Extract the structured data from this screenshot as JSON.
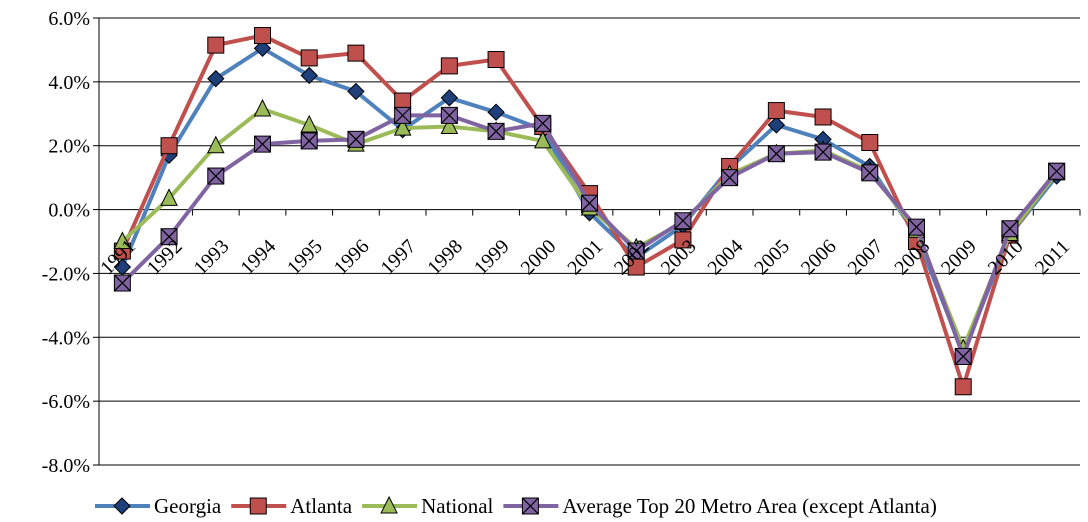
{
  "chart_data": {
    "type": "line",
    "title": "",
    "xlabel": "",
    "ylabel": "",
    "ylim": [
      -8.0,
      6.0
    ],
    "y_tick_step": 2.0,
    "y_tick_labels": [
      "6.0%",
      "4.0%",
      "2.0%",
      "0.0%",
      "-2.0%",
      "-4.0%",
      "-6.0%",
      "-8.0%"
    ],
    "categories": [
      "1991",
      "1992",
      "1993",
      "1994",
      "1995",
      "1996",
      "1997",
      "1998",
      "1999",
      "2000",
      "2001",
      "2002",
      "2003",
      "2004",
      "2005",
      "2006",
      "2007",
      "2008",
      "2009",
      "2010",
      "2011"
    ],
    "grid": "horizontal",
    "legend_position": "bottom",
    "series": [
      {
        "name": "Georgia",
        "color": "#4f81bd",
        "marker": "diamond",
        "values": [
          -1.8,
          1.7,
          4.1,
          5.05,
          4.2,
          3.7,
          2.5,
          3.5,
          3.05,
          2.5,
          -0.1,
          -1.5,
          -0.5,
          1.3,
          2.65,
          2.2,
          1.35,
          -0.8,
          -4.5,
          -0.8,
          1.05
        ]
      },
      {
        "name": "Atlanta",
        "color": "#c0504d",
        "marker": "square",
        "values": [
          -1.3,
          2.0,
          5.15,
          5.45,
          4.75,
          4.9,
          3.4,
          4.5,
          4.7,
          2.6,
          0.5,
          -1.8,
          -0.95,
          1.35,
          3.1,
          2.9,
          2.1,
          -1.0,
          -5.55,
          -0.8,
          1.2
        ]
      },
      {
        "name": "National",
        "color": "#9bbb59",
        "marker": "triangle",
        "values": [
          -1.0,
          0.35,
          2.0,
          3.15,
          2.65,
          2.05,
          2.55,
          2.6,
          2.45,
          2.15,
          0.05,
          -1.2,
          -0.4,
          1.1,
          1.75,
          1.85,
          1.2,
          -0.65,
          -4.35,
          -0.75,
          1.15
        ]
      },
      {
        "name": "Average Top 20 Metro Area (except Atlanta)",
        "color": "#8064a2",
        "marker": "x-square",
        "values": [
          -2.3,
          -0.85,
          1.05,
          2.05,
          2.15,
          2.2,
          2.95,
          2.95,
          2.45,
          2.7,
          0.2,
          -1.3,
          -0.35,
          1.0,
          1.75,
          1.8,
          1.15,
          -0.55,
          -4.6,
          -0.6,
          1.2
        ]
      }
    ]
  }
}
